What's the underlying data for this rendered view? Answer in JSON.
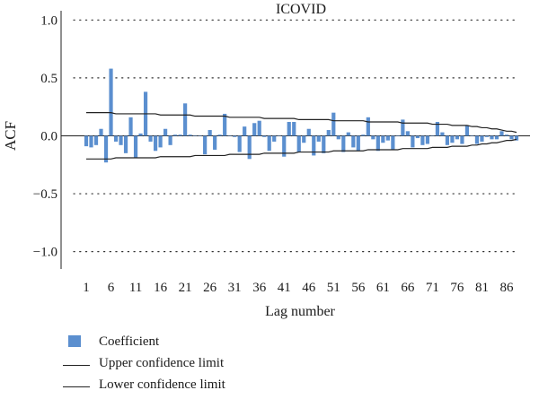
{
  "chart_data": {
    "type": "bar",
    "title": "ICOVID",
    "xlabel": "Lag number",
    "ylabel": "ACF",
    "ylim": [
      -1.15,
      1.08
    ],
    "yticks": [
      1.0,
      0.5,
      0.0,
      -0.5,
      -1.0
    ],
    "ytick_labels": [
      "1.0",
      "0.5",
      "0.0",
      "−0.5",
      "−1.0"
    ],
    "xticks": [
      1,
      6,
      11,
      16,
      21,
      26,
      31,
      36,
      41,
      46,
      51,
      56,
      61,
      66,
      71,
      76,
      81,
      86
    ],
    "xtick_labels": [
      "1",
      "6",
      "11",
      "16",
      "21",
      "26",
      "31",
      "36",
      "41",
      "46",
      "51",
      "56",
      "61",
      "66",
      "71",
      "76",
      "81",
      "86"
    ],
    "lags": [
      1,
      2,
      3,
      4,
      5,
      6,
      7,
      8,
      9,
      10,
      11,
      12,
      13,
      14,
      15,
      16,
      17,
      18,
      19,
      20,
      21,
      22,
      23,
      24,
      25,
      26,
      27,
      28,
      29,
      30,
      31,
      32,
      33,
      34,
      35,
      36,
      37,
      38,
      39,
      40,
      41,
      42,
      43,
      44,
      45,
      46,
      47,
      48,
      49,
      50,
      51,
      52,
      53,
      54,
      55,
      56,
      57,
      58,
      59,
      60,
      61,
      62,
      63,
      64,
      65,
      66,
      67,
      68,
      69,
      70,
      71,
      72,
      73,
      74,
      75,
      76,
      77,
      78,
      79,
      80,
      81,
      82,
      83,
      84,
      85,
      86,
      87,
      88
    ],
    "series": [
      {
        "name": "Coefficient",
        "color": "#5b8fcf",
        "values": [
          -0.09,
          -0.1,
          -0.08,
          0.06,
          -0.23,
          0.58,
          -0.05,
          -0.08,
          -0.15,
          0.16,
          -0.19,
          0.02,
          0.38,
          -0.05,
          -0.13,
          -0.1,
          0.06,
          -0.08,
          0.01,
          0.01,
          0.28,
          0.01,
          0.0,
          0.0,
          -0.16,
          0.05,
          -0.12,
          0.01,
          0.19,
          0.0,
          -0.01,
          -0.14,
          0.08,
          -0.2,
          0.11,
          0.13,
          -0.01,
          -0.13,
          -0.05,
          0.0,
          -0.18,
          0.12,
          0.12,
          -0.14,
          -0.06,
          0.06,
          -0.17,
          -0.05,
          -0.15,
          0.05,
          0.2,
          -0.03,
          -0.14,
          0.03,
          -0.1,
          -0.13,
          0.01,
          0.16,
          -0.03,
          -0.13,
          -0.06,
          -0.04,
          -0.12,
          0.0,
          0.14,
          0.04,
          -0.1,
          -0.02,
          -0.08,
          -0.07,
          0.0,
          0.12,
          0.03,
          -0.08,
          -0.06,
          -0.03,
          -0.07,
          0.09,
          0.0,
          -0.07,
          -0.05,
          -0.01,
          -0.03,
          -0.03,
          0.04,
          0.01,
          -0.03,
          -0.04
        ]
      },
      {
        "name": "Upper confidence limit",
        "color": "#222222",
        "values": [
          0.2,
          0.2,
          0.2,
          0.2,
          0.2,
          0.2,
          0.19,
          0.19,
          0.19,
          0.19,
          0.19,
          0.19,
          0.19,
          0.19,
          0.19,
          0.18,
          0.18,
          0.18,
          0.18,
          0.18,
          0.18,
          0.18,
          0.17,
          0.17,
          0.17,
          0.17,
          0.17,
          0.17,
          0.17,
          0.16,
          0.16,
          0.16,
          0.16,
          0.16,
          0.16,
          0.16,
          0.15,
          0.15,
          0.15,
          0.15,
          0.15,
          0.15,
          0.15,
          0.14,
          0.14,
          0.14,
          0.14,
          0.14,
          0.14,
          0.14,
          0.13,
          0.13,
          0.13,
          0.13,
          0.13,
          0.13,
          0.13,
          0.12,
          0.12,
          0.12,
          0.12,
          0.12,
          0.12,
          0.12,
          0.11,
          0.11,
          0.11,
          0.11,
          0.11,
          0.11,
          0.1,
          0.1,
          0.1,
          0.1,
          0.09,
          0.09,
          0.09,
          0.09,
          0.08,
          0.08,
          0.07,
          0.07,
          0.06,
          0.06,
          0.05,
          0.04,
          0.04,
          0.03
        ]
      },
      {
        "name": "Lower confidence limit",
        "color": "#222222",
        "values": [
          -0.2,
          -0.2,
          -0.2,
          -0.2,
          -0.2,
          -0.2,
          -0.19,
          -0.19,
          -0.19,
          -0.19,
          -0.19,
          -0.19,
          -0.19,
          -0.19,
          -0.19,
          -0.18,
          -0.18,
          -0.18,
          -0.18,
          -0.18,
          -0.18,
          -0.18,
          -0.17,
          -0.17,
          -0.17,
          -0.17,
          -0.17,
          -0.17,
          -0.17,
          -0.16,
          -0.16,
          -0.16,
          -0.16,
          -0.16,
          -0.16,
          -0.16,
          -0.15,
          -0.15,
          -0.15,
          -0.15,
          -0.15,
          -0.15,
          -0.15,
          -0.14,
          -0.14,
          -0.14,
          -0.14,
          -0.14,
          -0.14,
          -0.14,
          -0.13,
          -0.13,
          -0.13,
          -0.13,
          -0.13,
          -0.13,
          -0.13,
          -0.12,
          -0.12,
          -0.12,
          -0.12,
          -0.12,
          -0.12,
          -0.12,
          -0.11,
          -0.11,
          -0.11,
          -0.11,
          -0.11,
          -0.11,
          -0.1,
          -0.1,
          -0.1,
          -0.1,
          -0.09,
          -0.09,
          -0.09,
          -0.09,
          -0.08,
          -0.08,
          -0.07,
          -0.07,
          -0.06,
          -0.06,
          -0.05,
          -0.04,
          -0.04,
          -0.03
        ]
      }
    ],
    "grid": true,
    "legend_position": "bottom-left"
  },
  "legend": {
    "coefficient": "Coefficient",
    "upper": "Upper confidence limit",
    "lower": "Lower confidence limit"
  }
}
